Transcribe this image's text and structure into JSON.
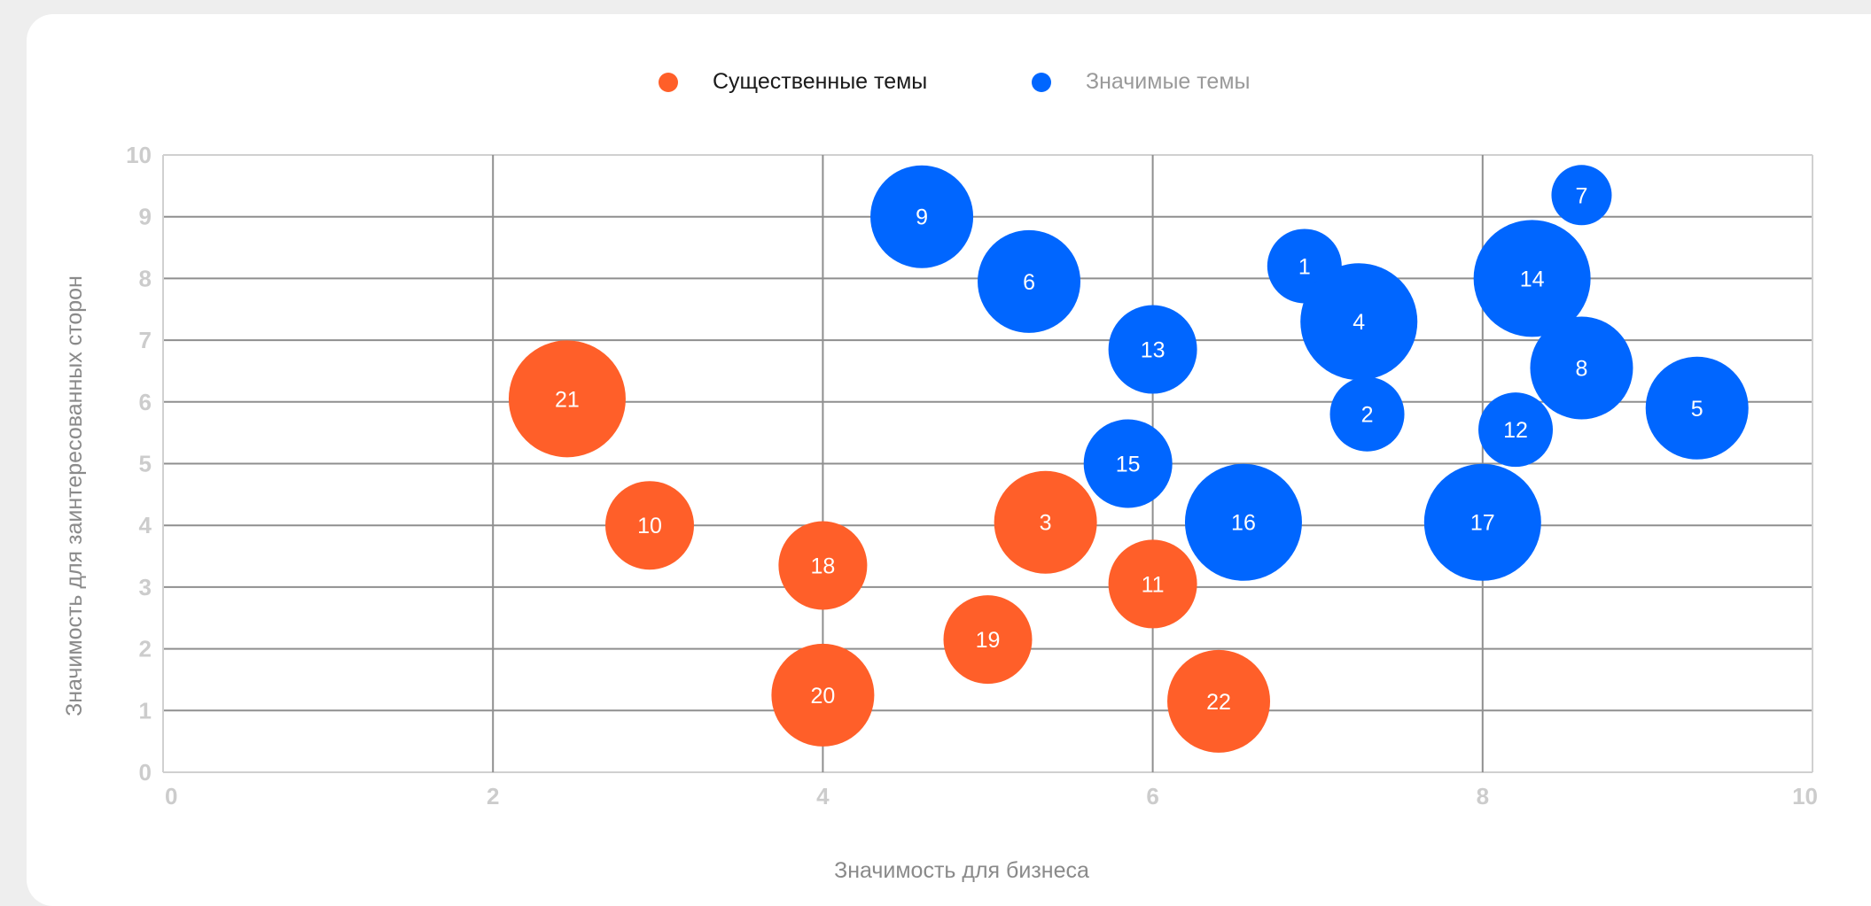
{
  "legend": {
    "items": [
      {
        "label": "Существенные темы",
        "color": "#ff5f29"
      },
      {
        "label": "Значимые темы",
        "color": "#0066ff"
      }
    ]
  },
  "chart_data": {
    "type": "scatter",
    "variant": "bubble",
    "xlabel": "Значимость для бизнеса",
    "ylabel": "Значимость для заинтересованных сторон",
    "xlim": [
      0,
      10
    ],
    "ylim": [
      0,
      10
    ],
    "xticks": [
      0,
      2,
      4,
      6,
      8,
      10
    ],
    "yticks": [
      0,
      1,
      2,
      3,
      4,
      5,
      6,
      7,
      8,
      9,
      10
    ],
    "grid": true,
    "legend_position": "top-center",
    "series": [
      {
        "name": "Существенные темы",
        "color": "#ff5f29",
        "points": [
          {
            "label": "21",
            "x": 2.45,
            "y": 6.05,
            "size": 3
          },
          {
            "label": "10",
            "x": 2.95,
            "y": 4.0,
            "size": 1
          },
          {
            "label": "3",
            "x": 5.35,
            "y": 4.05,
            "size": 2
          },
          {
            "label": "18",
            "x": 4.0,
            "y": 3.35,
            "size": 1
          },
          {
            "label": "11",
            "x": 6.0,
            "y": 3.05,
            "size": 1
          },
          {
            "label": "19",
            "x": 5.0,
            "y": 2.15,
            "size": 1
          },
          {
            "label": "20",
            "x": 4.0,
            "y": 1.25,
            "size": 2
          },
          {
            "label": "22",
            "x": 6.4,
            "y": 1.15,
            "size": 2
          }
        ]
      },
      {
        "name": "Значимые темы",
        "color": "#0066ff",
        "points": [
          {
            "label": "9",
            "x": 4.6,
            "y": 9.0,
            "size": 2
          },
          {
            "label": "6",
            "x": 5.25,
            "y": 7.95,
            "size": 2
          },
          {
            "label": "13",
            "x": 6.0,
            "y": 6.85,
            "size": 1
          },
          {
            "label": "1",
            "x": 6.92,
            "y": 8.2,
            "size": 0
          },
          {
            "label": "4",
            "x": 7.25,
            "y": 7.3,
            "size": 3
          },
          {
            "label": "2",
            "x": 7.3,
            "y": 5.8,
            "size": 0
          },
          {
            "label": "15",
            "x": 5.85,
            "y": 5.0,
            "size": 1
          },
          {
            "label": "16",
            "x": 6.55,
            "y": 4.05,
            "size": 3
          },
          {
            "label": "17",
            "x": 8.0,
            "y": 4.05,
            "size": 3
          },
          {
            "label": "12",
            "x": 8.2,
            "y": 5.55,
            "size": 0
          },
          {
            "label": "14",
            "x": 8.3,
            "y": 8.0,
            "size": 3
          },
          {
            "label": "8",
            "x": 8.6,
            "y": 6.55,
            "size": 2
          },
          {
            "label": "7",
            "x": 8.6,
            "y": 9.35,
            "size": -1
          },
          {
            "label": "5",
            "x": 9.3,
            "y": 5.9,
            "size": 2
          }
        ]
      }
    ]
  }
}
